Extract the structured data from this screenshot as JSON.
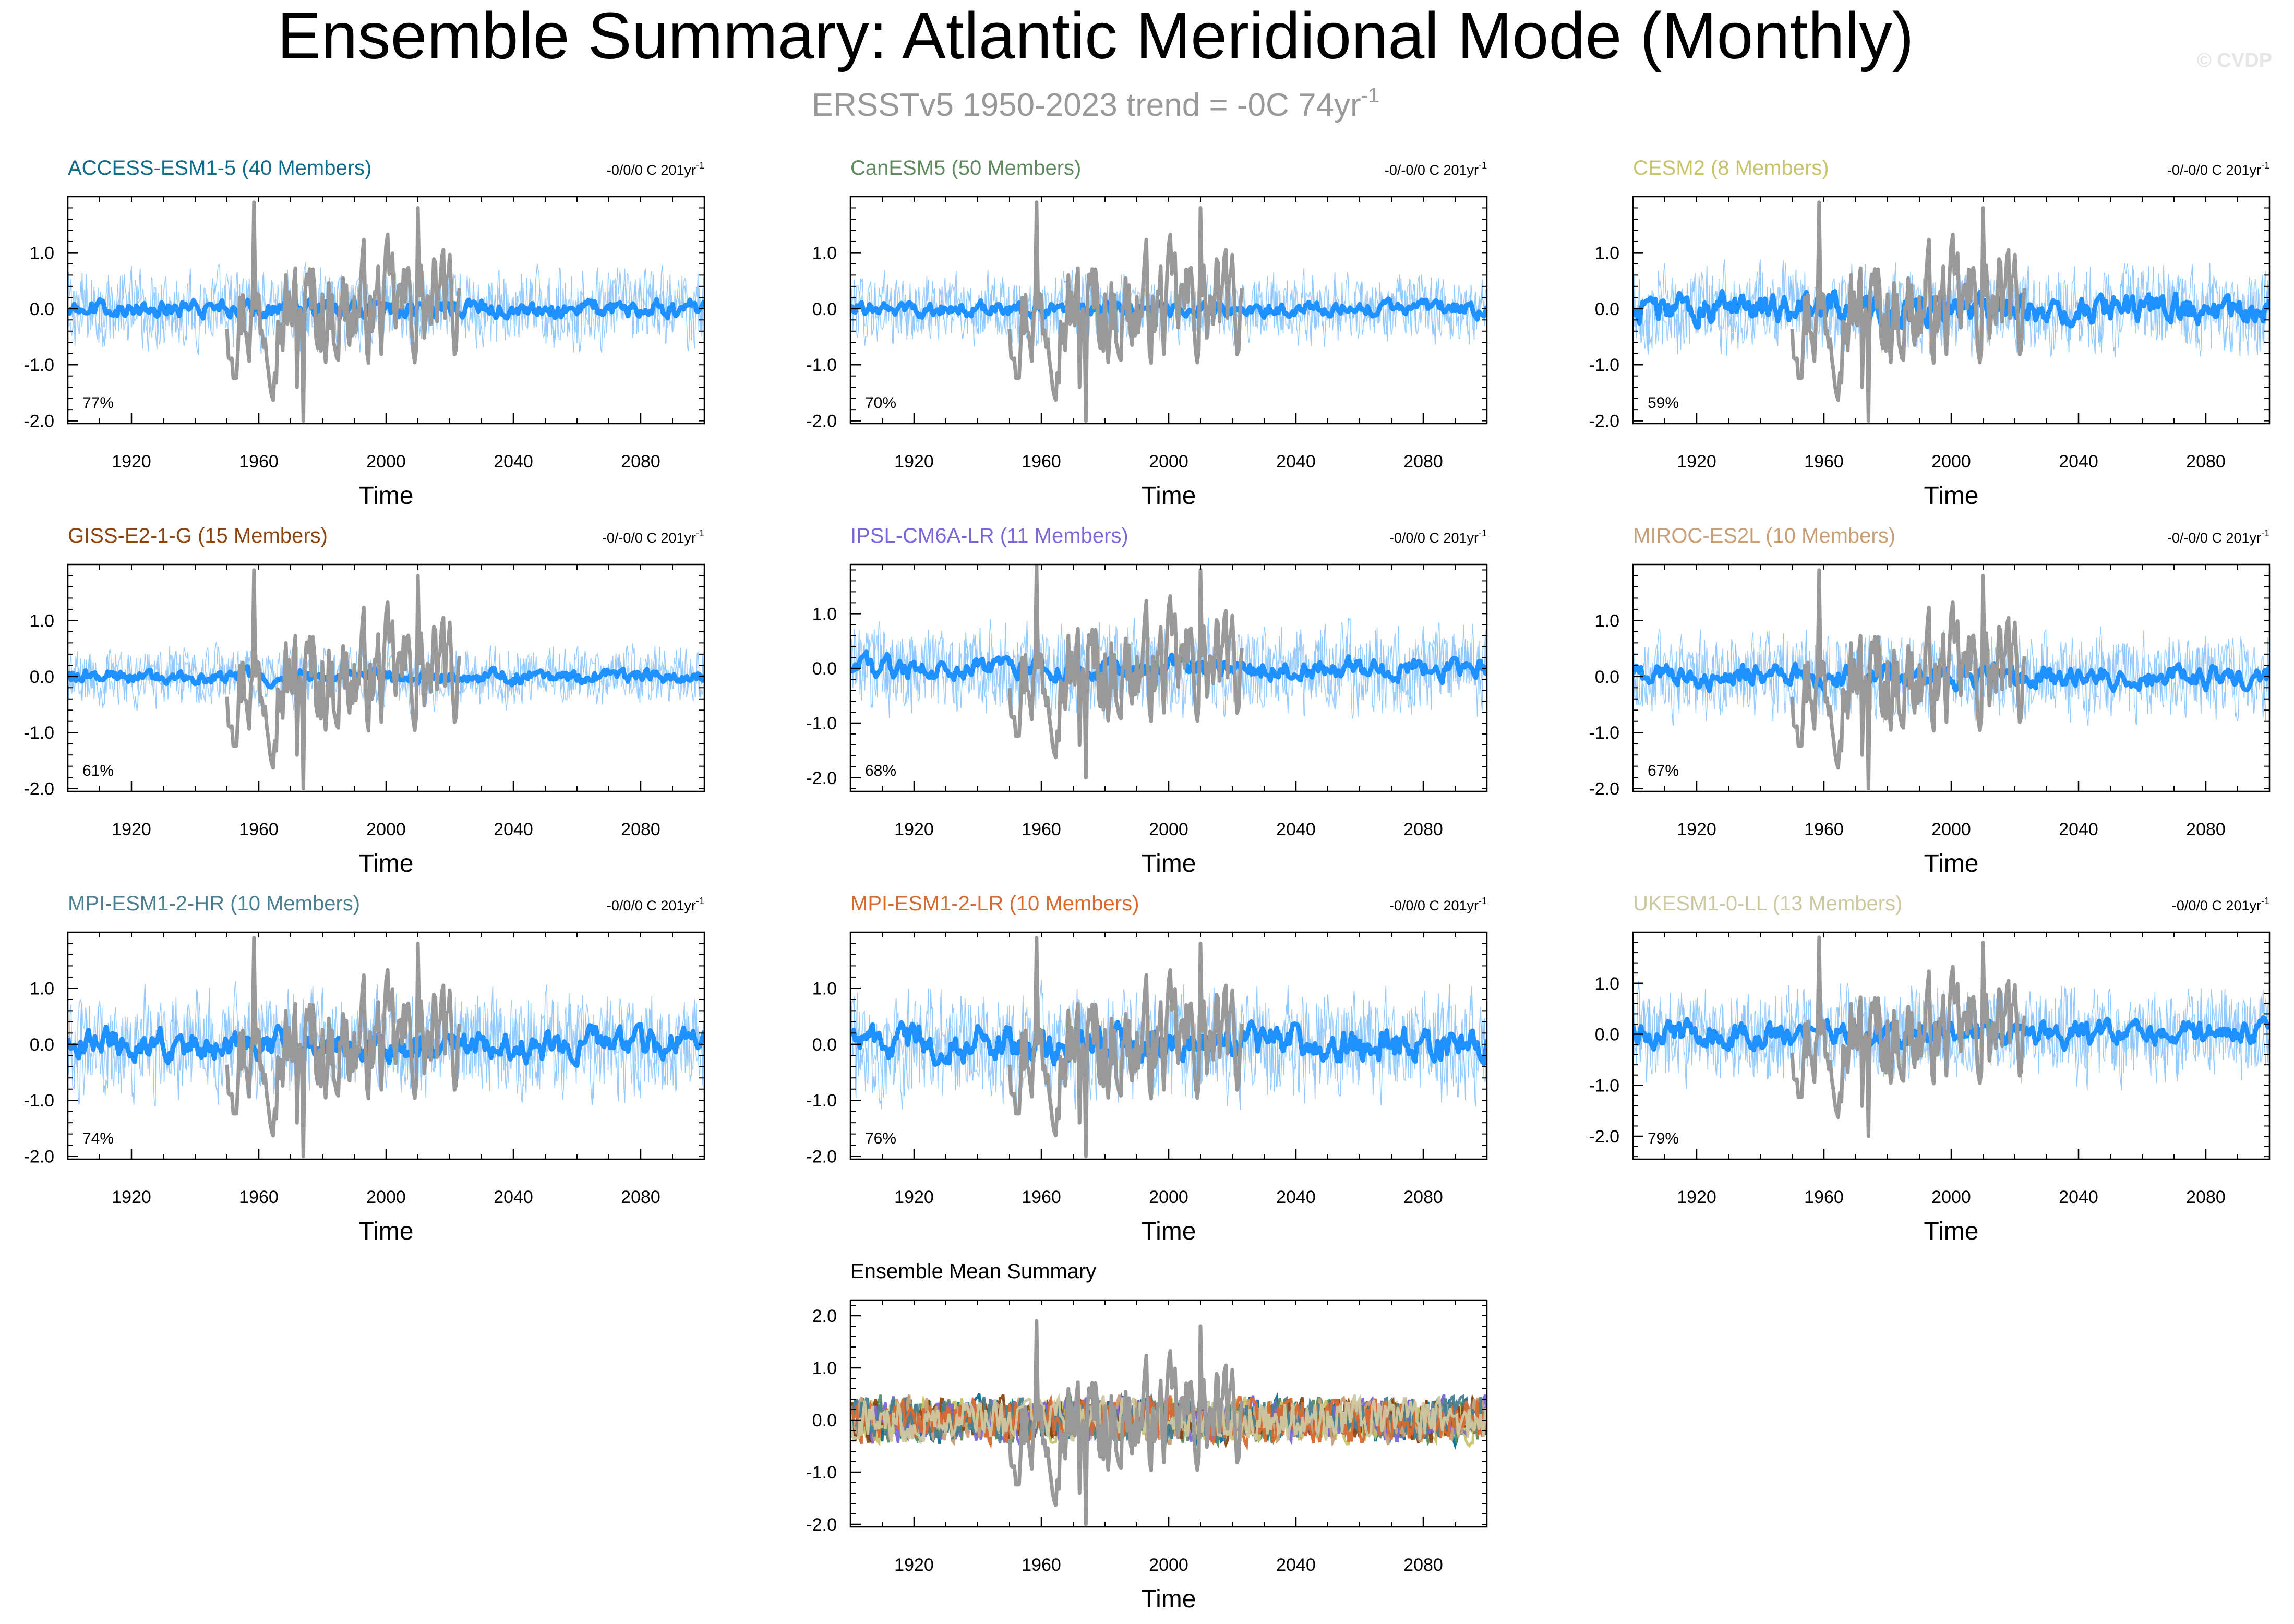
{
  "title": "Ensemble Summary: Atlantic Meridional Mode (Monthly)",
  "subtitle": "ERSST v5 1950-2023 trend = -0C 74yr",
  "subtitle_parts": {
    "text": "ERSSTv5 1950-2023 trend = -0C 74yr",
    "superscript": "-1"
  },
  "watermark": "© CVDP",
  "colors": {
    "observations": "#999999",
    "ensemble_mean": "#1e90ff",
    "ensemble_spread": "#87c4ff",
    "ACCESS-ESM1-5": "#0b6e8e",
    "CanESM5": "#5e8b5e",
    "CESM2": "#c8c46a",
    "GISS-E2-1-G": "#8b4513",
    "IPSL-CM6A-LR": "#7b68d8",
    "MIROC-ES2L": "#c8a078",
    "MPI-ESM1-2-HR": "#4a8090",
    "MPI-ESM1-2-LR": "#d86a30",
    "UKESM1-0-LL": "#ccc8a0"
  },
  "chart_data": [
    {
      "type": "line",
      "model": "ACCESS-ESM1-5",
      "title": "ACCESS-ESM1-5 (40 Members)",
      "trend_label": "-0/0/0 C 201yr",
      "trend_sup": "-1",
      "percent_label": "77%",
      "xlabel": "Time",
      "xlim": [
        1900,
        2100
      ],
      "ylim": [
        -2.05,
        2.0
      ],
      "xticks": [
        "1920",
        "1960",
        "2000",
        "2040",
        "2080"
      ],
      "yticks": [
        "1.0",
        "0.0",
        "-1.0",
        "-2.0"
      ],
      "xtick_values": [
        1920,
        1960,
        2000,
        2040,
        2080
      ],
      "ytick_values": [
        1.0,
        0.0,
        -1.0,
        -2.0
      ],
      "spread_amplitude": 0.45,
      "mean_amplitude": 0.12,
      "obs_range": [
        1950,
        2023
      ],
      "obs_min": -2.0,
      "obs_max": 1.9
    },
    {
      "type": "line",
      "model": "CanESM5",
      "title": "CanESM5 (50 Members)",
      "trend_label": "-0/-0/0 C 201yr",
      "trend_sup": "-1",
      "percent_label": "70%",
      "xlabel": "Time",
      "xlim": [
        1900,
        2100
      ],
      "ylim": [
        -2.05,
        2.0
      ],
      "xticks": [
        "1920",
        "1960",
        "2000",
        "2040",
        "2080"
      ],
      "yticks": [
        "1.0",
        "0.0",
        "-1.0",
        "-2.0"
      ],
      "xtick_values": [
        1920,
        1960,
        2000,
        2040,
        2080
      ],
      "ytick_values": [
        1.0,
        0.0,
        -1.0,
        -2.0
      ],
      "spread_amplitude": 0.4,
      "mean_amplitude": 0.1,
      "obs_range": [
        1950,
        2023
      ],
      "obs_min": -2.0,
      "obs_max": 1.9
    },
    {
      "type": "line",
      "model": "CESM2",
      "title": "CESM2 (8 Members)",
      "trend_label": "-0/-0/0 C 201yr",
      "trend_sup": "-1",
      "percent_label": "59%",
      "xlabel": "Time",
      "xlim": [
        1900,
        2100
      ],
      "ylim": [
        -2.05,
        2.0
      ],
      "xticks": [
        "1920",
        "1960",
        "2000",
        "2040",
        "2080"
      ],
      "yticks": [
        "1.0",
        "0.0",
        "-1.0",
        "-2.0"
      ],
      "xtick_values": [
        1920,
        1960,
        2000,
        2040,
        2080
      ],
      "ytick_values": [
        1.0,
        0.0,
        -1.0,
        -2.0
      ],
      "spread_amplitude": 0.5,
      "mean_amplitude": 0.2,
      "obs_range": [
        1950,
        2023
      ],
      "obs_min": -2.0,
      "obs_max": 1.9
    },
    {
      "type": "line",
      "model": "GISS-E2-1-G",
      "title": "GISS-E2-1-G (15 Members)",
      "trend_label": "-0/-0/0 C 201yr",
      "trend_sup": "-1",
      "percent_label": "61%",
      "xlabel": "Time",
      "xlim": [
        1900,
        2100
      ],
      "ylim": [
        -2.05,
        2.0
      ],
      "xticks": [
        "1920",
        "1960",
        "2000",
        "2040",
        "2080"
      ],
      "yticks": [
        "1.0",
        "0.0",
        "-1.0",
        "-2.0"
      ],
      "xtick_values": [
        1920,
        1960,
        2000,
        2040,
        2080
      ],
      "ytick_values": [
        1.0,
        0.0,
        -1.0,
        -2.0
      ],
      "spread_amplitude": 0.35,
      "mean_amplitude": 0.1,
      "obs_range": [
        1950,
        2023
      ],
      "obs_min": -2.0,
      "obs_max": 1.9
    },
    {
      "type": "line",
      "model": "IPSL-CM6A-LR",
      "title": "IPSL-CM6A-LR (11 Members)",
      "trend_label": "-0/0/0 C 201yr",
      "trend_sup": "-1",
      "percent_label": "68%",
      "xlabel": "Time",
      "xlim": [
        1900,
        2100
      ],
      "ylim": [
        -2.25,
        1.9
      ],
      "xticks": [
        "1920",
        "1960",
        "2000",
        "2040",
        "2080"
      ],
      "yticks": [
        "1.0",
        "0.0",
        "-1.0",
        "-2.0"
      ],
      "xtick_values": [
        1920,
        1960,
        2000,
        2040,
        2080
      ],
      "ytick_values": [
        1.0,
        0.0,
        -1.0,
        -2.0
      ],
      "spread_amplitude": 0.55,
      "mean_amplitude": 0.15,
      "obs_range": [
        1950,
        2023
      ],
      "obs_min": -2.0,
      "obs_max": 1.9
    },
    {
      "type": "line",
      "model": "MIROC-ES2L",
      "title": "MIROC-ES2L (10 Members)",
      "trend_label": "-0/-0/0 C 201yr",
      "trend_sup": "-1",
      "percent_label": "67%",
      "xlabel": "Time",
      "xlim": [
        1900,
        2100
      ],
      "ylim": [
        -2.05,
        2.0
      ],
      "xticks": [
        "1920",
        "1960",
        "2000",
        "2040",
        "2080"
      ],
      "yticks": [
        "1.0",
        "0.0",
        "-1.0",
        "-2.0"
      ],
      "xtick_values": [
        1920,
        1960,
        2000,
        2040,
        2080
      ],
      "ytick_values": [
        1.0,
        0.0,
        -1.0,
        -2.0
      ],
      "spread_amplitude": 0.5,
      "mean_amplitude": 0.15,
      "obs_range": [
        1950,
        2023
      ],
      "obs_min": -2.0,
      "obs_max": 1.9
    },
    {
      "type": "line",
      "model": "MPI-ESM1-2-HR",
      "title": "MPI-ESM1-2-HR (10 Members)",
      "trend_label": "-0/0/0 C 201yr",
      "trend_sup": "-1",
      "percent_label": "74%",
      "xlabel": "Time",
      "xlim": [
        1900,
        2100
      ],
      "ylim": [
        -2.05,
        2.0
      ],
      "xticks": [
        "1920",
        "1960",
        "2000",
        "2040",
        "2080"
      ],
      "yticks": [
        "1.0",
        "0.0",
        "-1.0",
        "-2.0"
      ],
      "xtick_values": [
        1920,
        1960,
        2000,
        2040,
        2080
      ],
      "ytick_values": [
        1.0,
        0.0,
        -1.0,
        -2.0
      ],
      "spread_amplitude": 0.6,
      "mean_amplitude": 0.2,
      "obs_range": [
        1950,
        2023
      ],
      "obs_min": -2.0,
      "obs_max": 1.9
    },
    {
      "type": "line",
      "model": "MPI-ESM1-2-LR",
      "title": "MPI-ESM1-2-LR (10 Members)",
      "trend_label": "-0/0/0 C 201yr",
      "trend_sup": "-1",
      "percent_label": "76%",
      "xlabel": "Time",
      "xlim": [
        1900,
        2100
      ],
      "ylim": [
        -2.05,
        2.0
      ],
      "xticks": [
        "1920",
        "1960",
        "2000",
        "2040",
        "2080"
      ],
      "yticks": [
        "1.0",
        "0.0",
        "-1.0",
        "-2.0"
      ],
      "xtick_values": [
        1920,
        1960,
        2000,
        2040,
        2080
      ],
      "ytick_values": [
        1.0,
        0.0,
        -1.0,
        -2.0
      ],
      "spread_amplitude": 0.65,
      "mean_amplitude": 0.22,
      "obs_range": [
        1950,
        2023
      ],
      "obs_min": -2.0,
      "obs_max": 1.9
    },
    {
      "type": "line",
      "model": "UKESM1-0-LL",
      "title": "UKESM1-0-LL (13 Members)",
      "trend_label": "-0/0/0 C 201yr",
      "trend_sup": "-1",
      "percent_label": "79%",
      "xlabel": "Time",
      "xlim": [
        1900,
        2100
      ],
      "ylim": [
        -2.45,
        2.0
      ],
      "xticks": [
        "1920",
        "1960",
        "2000",
        "2040",
        "2080"
      ],
      "yticks": [
        "1.0",
        "0.0",
        "-1.0",
        "-2.0"
      ],
      "xtick_values": [
        1920,
        1960,
        2000,
        2040,
        2080
      ],
      "ytick_values": [
        1.0,
        0.0,
        -1.0,
        -2.0
      ],
      "spread_amplitude": 0.6,
      "mean_amplitude": 0.18,
      "obs_range": [
        1950,
        2023
      ],
      "obs_min": -2.0,
      "obs_max": 1.9
    },
    {
      "type": "line",
      "model": "ensemble-mean-summary",
      "title": "Ensemble Mean Summary",
      "xlabel": "Time",
      "xlim": [
        1900,
        2100
      ],
      "ylim": [
        -2.05,
        2.3
      ],
      "xticks": [
        "1920",
        "1960",
        "2000",
        "2040",
        "2080"
      ],
      "yticks": [
        "2.0",
        "1.0",
        "0.0",
        "-1.0",
        "-2.0"
      ],
      "xtick_values": [
        1920,
        1960,
        2000,
        2040,
        2080
      ],
      "ytick_values": [
        2.0,
        1.0,
        0.0,
        -1.0,
        -2.0
      ],
      "series": [
        "ACCESS-ESM1-5",
        "CanESM5",
        "CESM2",
        "GISS-E2-1-G",
        "IPSL-CM6A-LR",
        "MIROC-ES2L",
        "MPI-ESM1-2-HR",
        "MPI-ESM1-2-LR",
        "UKESM1-0-LL"
      ],
      "obs_range": [
        1950,
        2023
      ],
      "obs_min": -2.0,
      "obs_max": 1.9
    }
  ]
}
